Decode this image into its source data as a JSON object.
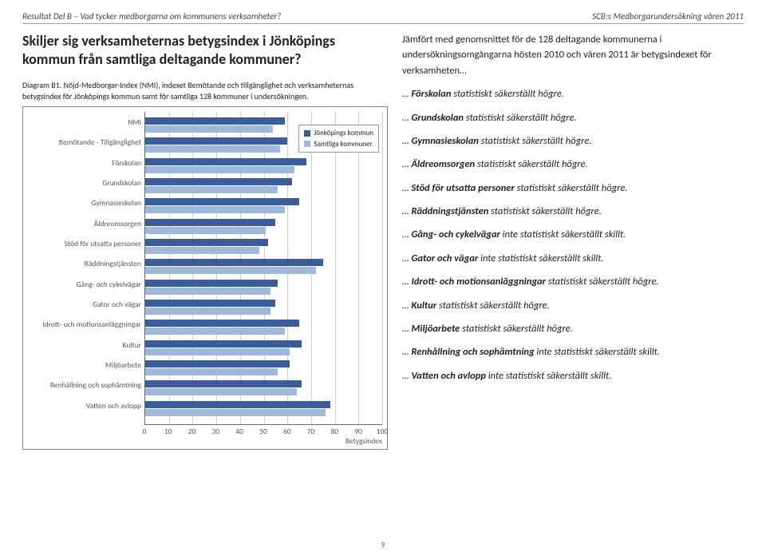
{
  "header": {
    "left": "Resultat Del B – Vad tycker medborgarna om kommunens verksamheter?",
    "right": "SCB:s Medborgarundersökning våren 2011"
  },
  "question": "Skiljer sig verksamheternas betygsindex i Jönköpings kommun från samtliga deltagande kommuner?",
  "caption": "Diagram B1. Nöjd-Medborgar-Index (NMI), indexet Bemötande och tillgänglighet och verksamheternas betygsindex för Jönköpings kommun samt för samtliga 128 kommuner i undersökningen.",
  "chart": {
    "type": "bar",
    "orientation": "horizontal",
    "xlim": [
      0,
      100
    ],
    "xtick_step": 10,
    "xlabel": "Betygsindex",
    "background_color": "#ffffff",
    "grid_color": "#cccccc",
    "bar_colors": {
      "a": "#3b5c9b",
      "b": "#9fb8dc"
    },
    "label_fontsize": 9.5,
    "label_color": "#555555",
    "legend": {
      "items": [
        {
          "label": "Jönköpings kommun",
          "color": "#3b5c9b"
        },
        {
          "label": "Samtliga kommuner",
          "color": "#9fb8dc"
        }
      ]
    },
    "categories": [
      {
        "label": "NMI",
        "a": 59,
        "b": 54
      },
      {
        "label": "Bemötande - Tillgänglighet",
        "a": 60,
        "b": 57
      },
      {
        "label": "Förskolan",
        "a": 68,
        "b": 63
      },
      {
        "label": "Grundskolan",
        "a": 62,
        "b": 56
      },
      {
        "label": "Gymnasieskolan",
        "a": 65,
        "b": 59
      },
      {
        "label": "Äldreomsorgen",
        "a": 55,
        "b": 51
      },
      {
        "label": "Stöd för utsatta personer",
        "a": 52,
        "b": 48
      },
      {
        "label": "Räddningstjänsten",
        "a": 75,
        "b": 72
      },
      {
        "label": "Gång- och cykelvägar",
        "a": 56,
        "b": 53
      },
      {
        "label": "Gator och vägar",
        "a": 55,
        "b": 53
      },
      {
        "label": "Idrott- och motionsanläggningar",
        "a": 65,
        "b": 59
      },
      {
        "label": "Kultur",
        "a": 66,
        "b": 61
      },
      {
        "label": "Miljöarbete",
        "a": 61,
        "b": 56
      },
      {
        "label": "Renhållning och sophämtning",
        "a": 66,
        "b": 64
      },
      {
        "label": "Vatten och avlopp",
        "a": 78,
        "b": 76
      }
    ]
  },
  "right": {
    "intro": "Jämfört med genomsnittet för de 128 deltagande kommunerna i undersökningsomgångarna hösten 2010 och våren 2011 är betygsindexet för verksamheten…",
    "items": [
      {
        "pre": "… ",
        "bold": "Förskolan",
        "post": " statistiskt säkerställt högre."
      },
      {
        "pre": "… ",
        "bold": "Grundskolan",
        "post": " statistiskt säkerställt högre."
      },
      {
        "pre": "… ",
        "bold": "Gymnasieskolan",
        "post": " statistiskt säkerställt högre."
      },
      {
        "pre": "… ",
        "bold": "Äldreomsorgen",
        "post": " statistiskt säkerställt högre."
      },
      {
        "pre": "… ",
        "bold": "Stöd för utsatta personer",
        "post": " statistiskt säkerställt högre."
      },
      {
        "pre": "… ",
        "bold": "Räddningstjänsten",
        "post": " statistiskt säkerställt högre."
      },
      {
        "pre": "… ",
        "bold": "Gång- och cykelvägar",
        "post": " inte statistiskt säkerställt skillt."
      },
      {
        "pre": "… ",
        "bold": "Gator och vägar",
        "post": " inte statistiskt säkerställt skillt."
      },
      {
        "pre": "… ",
        "bold": "Idrott- och motionsanläggningar",
        "post": " statistiskt säkerställt högre."
      },
      {
        "pre": "… ",
        "bold": "Kultur",
        "post": " statistiskt säkerställt högre."
      },
      {
        "pre": "… ",
        "bold": "Miljöarbete",
        "post": " statistiskt säkerställt högre."
      },
      {
        "pre": "… ",
        "bold": "Renhållning och sophämtning",
        "post": " inte statistiskt säkerställt skillt."
      },
      {
        "pre": "… ",
        "bold": "Vatten och avlopp",
        "post": " inte statistiskt säkerställt skillt."
      }
    ]
  },
  "page_number": "9"
}
